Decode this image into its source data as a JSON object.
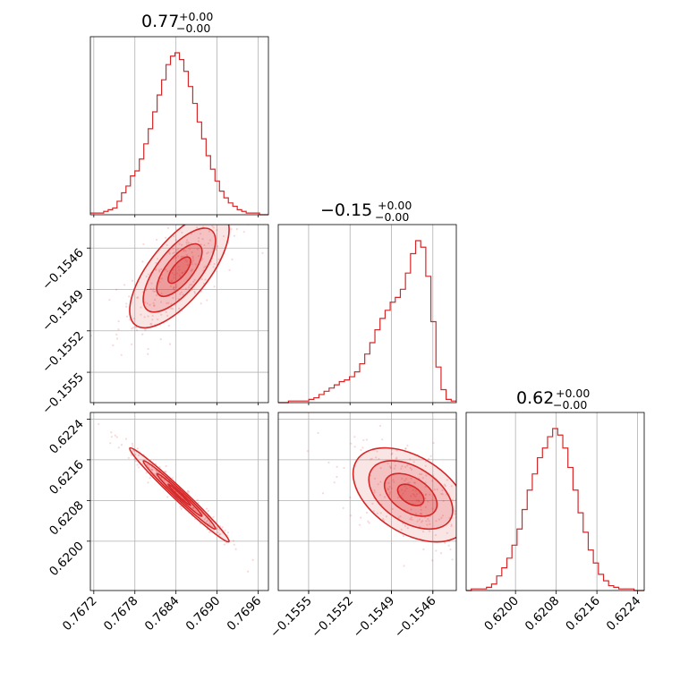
{
  "chart_data": {
    "type": "corner",
    "color": "#d62728",
    "grid": true,
    "titles": [
      {
        "value": "0.77",
        "plus": "+0.00",
        "minus": "−0.00"
      },
      {
        "value": "−0.15",
        "plus": "+0.00",
        "minus": "−0.00"
      },
      {
        "value": "0.62",
        "plus": "+0.00",
        "minus": "−0.00"
      }
    ],
    "params": [
      {
        "range": [
          0.76715,
          0.76975
        ],
        "mean": 0.76845,
        "sd": 0.00033,
        "ticks": [
          0.7672,
          0.7678,
          0.7684,
          0.769,
          0.7696
        ],
        "tick_labels": [
          "0.7672",
          "0.7678",
          "0.7684",
          "0.7690",
          "0.7696"
        ]
      },
      {
        "range": [
          -0.15572,
          -0.15443
        ],
        "mean": -0.15476,
        "sd": 0.00019,
        "ticks": [
          -0.1555,
          -0.1552,
          -0.1549,
          -0.1546
        ],
        "tick_labels": [
          "−0.1555",
          "−0.1552",
          "−0.1549",
          "−0.1546"
        ]
      },
      {
        "range": [
          0.61903,
          0.62253
        ],
        "mean": 0.62091,
        "sd": 0.00042,
        "ticks": [
          0.62,
          0.6208,
          0.6216,
          0.6224
        ],
        "tick_labels": [
          "0.6200",
          "0.6208",
          "0.6216",
          "0.6224"
        ]
      }
    ],
    "histograms": [
      {
        "counts": [
          1,
          1,
          1,
          2,
          3,
          4,
          8,
          13,
          17,
          23,
          26,
          33,
          42,
          51,
          61,
          71,
          80,
          89,
          94,
          96,
          92,
          85,
          76,
          66,
          55,
          45,
          35,
          27,
          20,
          14,
          10,
          7,
          5,
          3,
          2,
          1,
          1,
          1,
          0,
          0
        ]
      },
      {
        "counts": [
          0,
          0,
          1,
          1,
          1,
          1,
          2,
          3,
          5,
          7,
          9,
          11,
          13,
          14,
          16,
          19,
          24,
          30,
          37,
          45,
          52,
          57,
          62,
          65,
          70,
          80,
          92,
          100,
          96,
          78,
          50,
          22,
          8,
          2,
          1
        ]
      },
      {
        "counts": [
          0,
          1,
          1,
          1,
          2,
          4,
          9,
          14,
          20,
          28,
          38,
          50,
          62,
          72,
          82,
          88,
          95,
          100,
          96,
          88,
          76,
          62,
          48,
          36,
          25,
          17,
          10,
          6,
          3,
          2,
          1,
          1,
          1,
          0,
          0
        ]
      }
    ],
    "pairs": [
      {
        "x": 0,
        "y": 1,
        "rho": 0.7
      },
      {
        "x": 0,
        "y": 2,
        "rho": -0.985
      },
      {
        "x": 1,
        "y": 2,
        "rho": -0.45
      }
    ]
  }
}
